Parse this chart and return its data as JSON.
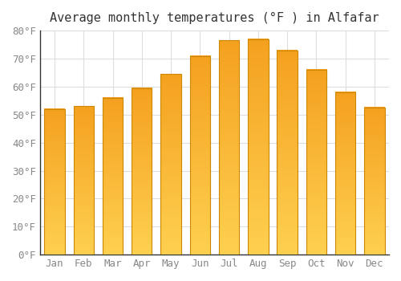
{
  "title": "Average monthly temperatures (°F ) in Alfafar",
  "months": [
    "Jan",
    "Feb",
    "Mar",
    "Apr",
    "May",
    "Jun",
    "Jul",
    "Aug",
    "Sep",
    "Oct",
    "Nov",
    "Dec"
  ],
  "values": [
    52,
    53,
    56,
    59.5,
    64.5,
    71,
    76.5,
    77,
    73,
    66,
    58,
    52.5
  ],
  "bar_color_bottom": "#FFD050",
  "bar_color_top": "#F5A020",
  "bar_edge_color": "#CC8800",
  "ylim": [
    0,
    80
  ],
  "yticks": [
    0,
    10,
    20,
    30,
    40,
    50,
    60,
    70,
    80
  ],
  "background_color": "#FFFFFF",
  "grid_color": "#DDDDDD",
  "title_fontsize": 11,
  "tick_fontsize": 9,
  "bar_width": 0.7
}
